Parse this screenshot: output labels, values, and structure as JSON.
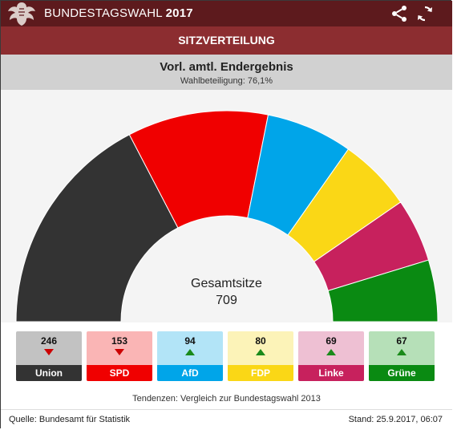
{
  "header": {
    "title_prefix": "BUNDESTAGSWAHL",
    "title_year": "2017",
    "share_icon": "share-icon",
    "refresh_icon": "refresh-icon"
  },
  "section_title": "SITZVERTEILUNG",
  "result": {
    "title": "Vorl. amtl. Endergebnis",
    "turnout": "Wahlbeteiligung: 76,1%"
  },
  "center": {
    "label": "Gesamtsitze",
    "total": "709"
  },
  "chart_data": {
    "type": "pie",
    "variant": "parliament-semicircle",
    "categories": [
      "Union",
      "SPD",
      "AfD",
      "FDP",
      "Linke",
      "Grüne"
    ],
    "values": [
      246,
      153,
      94,
      80,
      69,
      67
    ],
    "total": 709,
    "colors": [
      "#333333",
      "#f00000",
      "#00a5e9",
      "#fad716",
      "#c7215d",
      "#0a8a12"
    ],
    "trends": [
      "down",
      "down",
      "up",
      "up",
      "up",
      "up"
    ],
    "card_colors": [
      "#c2c2c2",
      "#fab5b5",
      "#b2e4f7",
      "#fcf3b8",
      "#eec0d3",
      "#b6e0b8"
    ],
    "trend_colors": [
      "#cc0000",
      "#cc0000",
      "#1a8a1a",
      "#1a8a1a",
      "#1a8a1a",
      "#1a8a1a"
    ]
  },
  "footnote": "Tendenzen: Vergleich zur Bundestagswahl 2013",
  "footer": {
    "source": "Quelle: Bundesamt für Statistik",
    "stand": "Stand: 25.9.2017, 06:07"
  }
}
